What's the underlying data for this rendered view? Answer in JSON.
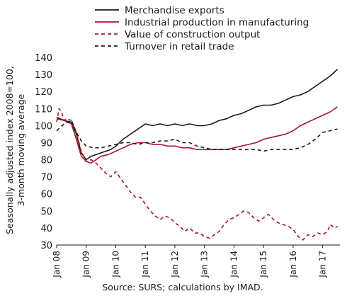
{
  "chart_data": {
    "type": "line",
    "title": "",
    "xlabel": "",
    "ylabel_lines": [
      "Seasonally adjusted index 2008=100,",
      "3-month moving average"
    ],
    "ylim": [
      30,
      140
    ],
    "yticks": [
      30,
      40,
      50,
      60,
      70,
      80,
      90,
      100,
      110,
      120,
      130,
      140
    ],
    "xticks": [
      {
        "label": "Jan 08",
        "x": 0
      },
      {
        "label": "Jan 09",
        "x": 12
      },
      {
        "label": "Jan 10",
        "x": 24
      },
      {
        "label": "Jan 11",
        "x": 36
      },
      {
        "label": "Jan 12",
        "x": 48
      },
      {
        "label": "Jan 13",
        "x": 60
      },
      {
        "label": "Jan 14",
        "x": 72
      },
      {
        "label": "Jan 15",
        "x": 84
      },
      {
        "label": "Jan 16",
        "x": 96
      },
      {
        "label": "Jan 17",
        "x": 108
      }
    ],
    "xlim": [
      0,
      115
    ],
    "grid": false,
    "legend_position": "top",
    "x_unit": "months from Jan 08",
    "series": [
      {
        "name": "Merchandise exports",
        "color": "#1a1a1a",
        "dash": "solid",
        "points": [
          [
            0,
            105
          ],
          [
            3,
            103
          ],
          [
            6,
            102
          ],
          [
            8,
            95
          ],
          [
            10,
            84
          ],
          [
            12,
            80
          ],
          [
            14,
            82
          ],
          [
            18,
            84
          ],
          [
            22,
            86
          ],
          [
            24,
            88
          ],
          [
            27,
            92
          ],
          [
            30,
            95
          ],
          [
            33,
            98
          ],
          [
            36,
            101
          ],
          [
            39,
            100
          ],
          [
            42,
            101
          ],
          [
            45,
            100
          ],
          [
            48,
            101
          ],
          [
            51,
            100
          ],
          [
            54,
            101
          ],
          [
            57,
            100
          ],
          [
            60,
            100
          ],
          [
            63,
            101
          ],
          [
            66,
            103
          ],
          [
            69,
            104
          ],
          [
            72,
            106
          ],
          [
            75,
            107
          ],
          [
            78,
            109
          ],
          [
            81,
            111
          ],
          [
            84,
            112
          ],
          [
            87,
            112
          ],
          [
            90,
            113
          ],
          [
            93,
            115
          ],
          [
            96,
            117
          ],
          [
            99,
            118
          ],
          [
            102,
            120
          ],
          [
            105,
            123
          ],
          [
            108,
            126
          ],
          [
            111,
            129
          ],
          [
            114,
            133
          ]
        ]
      },
      {
        "name": "Industrial production in manufacturing",
        "color": "#a3172b",
        "dash": "solid",
        "points": [
          [
            0,
            104
          ],
          [
            3,
            103
          ],
          [
            6,
            101
          ],
          [
            8,
            92
          ],
          [
            10,
            82
          ],
          [
            12,
            79
          ],
          [
            14,
            78
          ],
          [
            16,
            80
          ],
          [
            18,
            82
          ],
          [
            21,
            83
          ],
          [
            24,
            85
          ],
          [
            27,
            87
          ],
          [
            30,
            89
          ],
          [
            33,
            90
          ],
          [
            36,
            90
          ],
          [
            39,
            89
          ],
          [
            42,
            89
          ],
          [
            45,
            88
          ],
          [
            48,
            88
          ],
          [
            51,
            87
          ],
          [
            54,
            87
          ],
          [
            57,
            86
          ],
          [
            60,
            86
          ],
          [
            63,
            86
          ],
          [
            66,
            86
          ],
          [
            69,
            86
          ],
          [
            72,
            87
          ],
          [
            75,
            88
          ],
          [
            78,
            89
          ],
          [
            81,
            90
          ],
          [
            84,
            92
          ],
          [
            87,
            93
          ],
          [
            90,
            94
          ],
          [
            93,
            95
          ],
          [
            96,
            97
          ],
          [
            99,
            100
          ],
          [
            102,
            102
          ],
          [
            105,
            104
          ],
          [
            108,
            106
          ],
          [
            111,
            108
          ],
          [
            114,
            111
          ]
        ]
      },
      {
        "name": "Value of construction output",
        "color": "#a3172b",
        "dash": "dashed",
        "points": [
          [
            0,
            102
          ],
          [
            1,
            110
          ],
          [
            2,
            108
          ],
          [
            3,
            103
          ],
          [
            4,
            104
          ],
          [
            6,
            103
          ],
          [
            8,
            96
          ],
          [
            10,
            85
          ],
          [
            12,
            79
          ],
          [
            14,
            80
          ],
          [
            16,
            78
          ],
          [
            18,
            75
          ],
          [
            20,
            72
          ],
          [
            22,
            70
          ],
          [
            24,
            73
          ],
          [
            26,
            69
          ],
          [
            28,
            65
          ],
          [
            30,
            61
          ],
          [
            32,
            58
          ],
          [
            34,
            58
          ],
          [
            36,
            54
          ],
          [
            38,
            50
          ],
          [
            40,
            47
          ],
          [
            42,
            45
          ],
          [
            44,
            47
          ],
          [
            46,
            46
          ],
          [
            48,
            43
          ],
          [
            50,
            41
          ],
          [
            52,
            38
          ],
          [
            54,
            40
          ],
          [
            56,
            37
          ],
          [
            58,
            37
          ],
          [
            60,
            35
          ],
          [
            62,
            34
          ],
          [
            64,
            36
          ],
          [
            66,
            38
          ],
          [
            68,
            42
          ],
          [
            70,
            45
          ],
          [
            72,
            46
          ],
          [
            74,
            48
          ],
          [
            76,
            50
          ],
          [
            78,
            49
          ],
          [
            80,
            46
          ],
          [
            82,
            44
          ],
          [
            84,
            46
          ],
          [
            86,
            48
          ],
          [
            88,
            45
          ],
          [
            90,
            43
          ],
          [
            92,
            42
          ],
          [
            94,
            41
          ],
          [
            96,
            39
          ],
          [
            98,
            35
          ],
          [
            100,
            33
          ],
          [
            102,
            36
          ],
          [
            104,
            35
          ],
          [
            106,
            37
          ],
          [
            108,
            36
          ],
          [
            110,
            38
          ],
          [
            111,
            42
          ],
          [
            113,
            40
          ],
          [
            114,
            41
          ]
        ]
      },
      {
        "name": "Turnover in retail trade",
        "color": "#1a1a1a",
        "dash": "dashed",
        "points": [
          [
            0,
            97
          ],
          [
            3,
            101
          ],
          [
            6,
            103
          ],
          [
            8,
            96
          ],
          [
            10,
            91
          ],
          [
            12,
            88
          ],
          [
            15,
            87
          ],
          [
            18,
            87
          ],
          [
            21,
            88
          ],
          [
            24,
            89
          ],
          [
            27,
            90
          ],
          [
            30,
            90
          ],
          [
            33,
            89
          ],
          [
            36,
            90
          ],
          [
            39,
            90
          ],
          [
            42,
            91
          ],
          [
            45,
            91
          ],
          [
            48,
            92
          ],
          [
            51,
            90
          ],
          [
            54,
            90
          ],
          [
            57,
            88
          ],
          [
            60,
            87
          ],
          [
            63,
            86
          ],
          [
            66,
            86
          ],
          [
            69,
            86
          ],
          [
            72,
            86
          ],
          [
            75,
            86
          ],
          [
            78,
            86
          ],
          [
            81,
            86
          ],
          [
            84,
            85
          ],
          [
            87,
            86
          ],
          [
            90,
            86
          ],
          [
            93,
            86
          ],
          [
            96,
            86
          ],
          [
            99,
            87
          ],
          [
            102,
            89
          ],
          [
            105,
            92
          ],
          [
            108,
            96
          ],
          [
            111,
            97
          ],
          [
            114,
            98
          ]
        ]
      }
    ]
  },
  "source_text": "Source: SURS; calculations by IMAD."
}
